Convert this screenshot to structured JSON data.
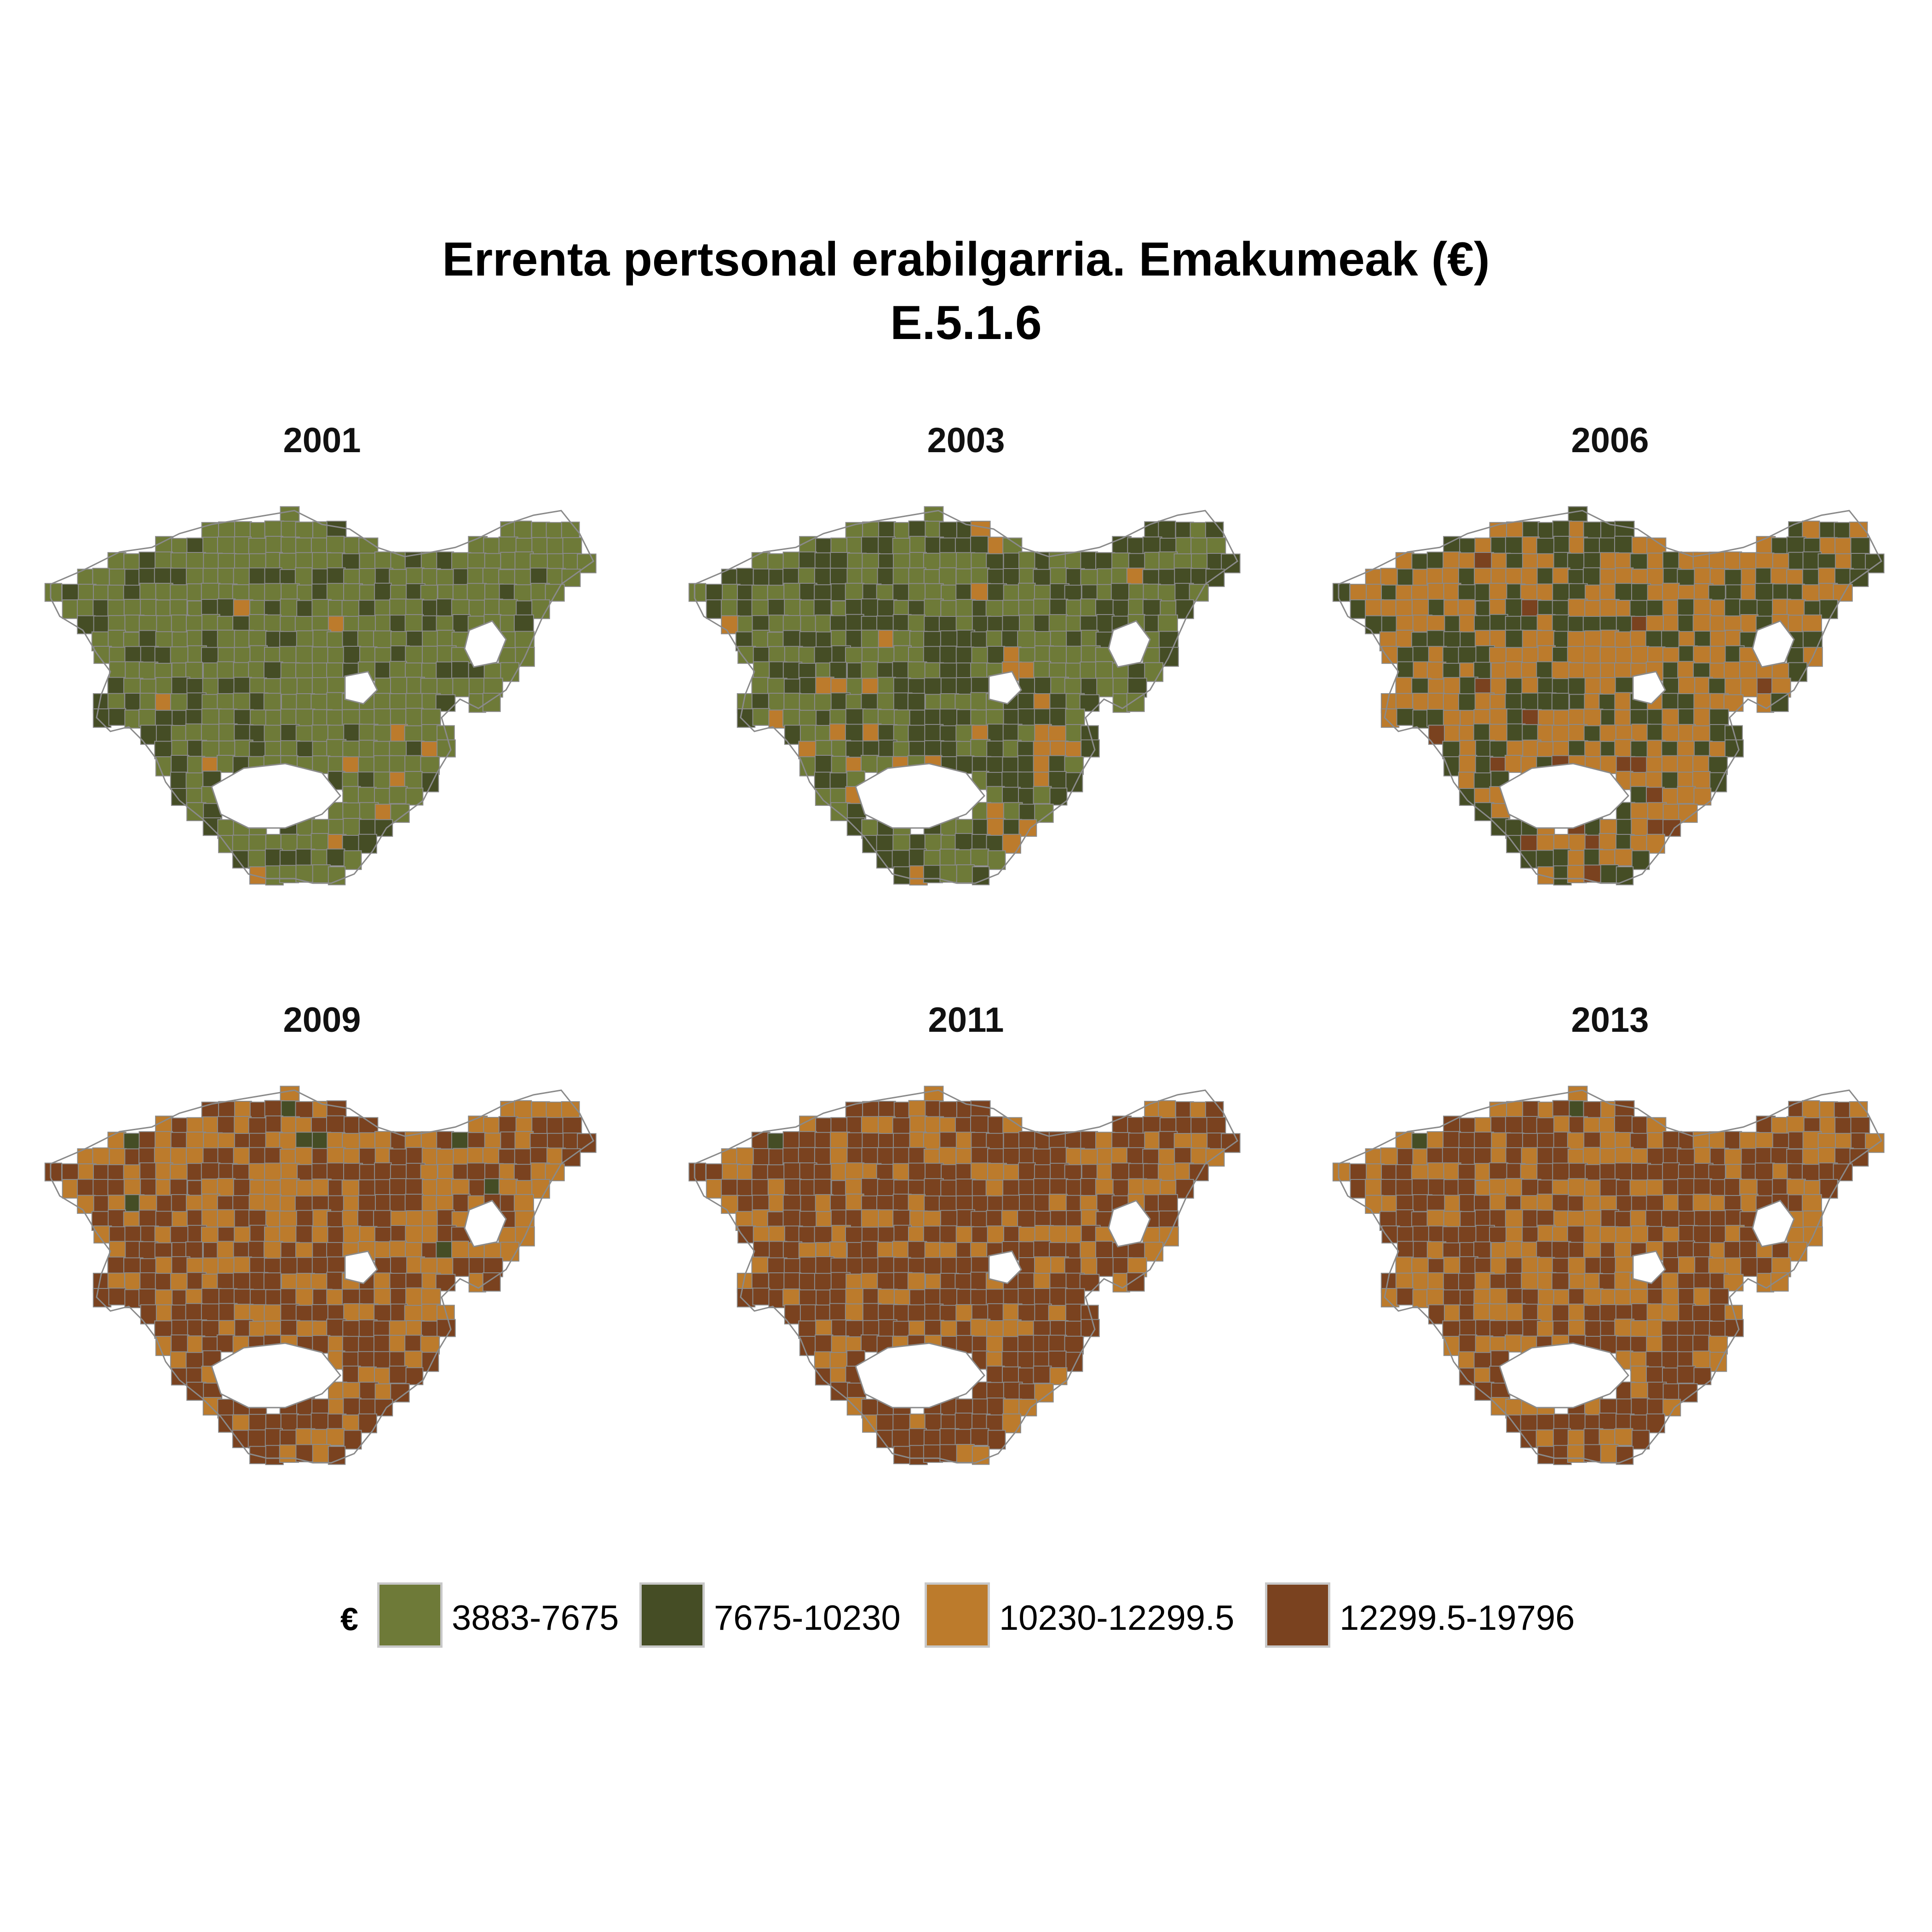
{
  "title": {
    "line1": "Errenta pertsonal erabilgarria. Emakumeak (€)",
    "line2": "E.5.1.6"
  },
  "legend": {
    "title": "€",
    "items": [
      {
        "label": "3883-7675",
        "color": "#6e7a38"
      },
      {
        "label": "7675-10230",
        "color": "#454d25"
      },
      {
        "label": "10230-12299.5",
        "color": "#bc7b2c"
      },
      {
        "label": "12299.5-19796",
        "color": "#7a421f"
      }
    ]
  },
  "colors": {
    "boundary": "#8a8a8a"
  },
  "panels": [
    {
      "year": "2001",
      "mix": [
        0.72,
        0.26,
        0.02,
        0.0
      ]
    },
    {
      "year": "2003",
      "mix": [
        0.52,
        0.36,
        0.12,
        0.0
      ]
    },
    {
      "year": "2006",
      "mix": [
        0.03,
        0.46,
        0.43,
        0.08
      ]
    },
    {
      "year": "2009",
      "mix": [
        0.01,
        0.09,
        0.4,
        0.5
      ]
    },
    {
      "year": "2011",
      "mix": [
        0.0,
        0.06,
        0.34,
        0.6
      ]
    },
    {
      "year": "2013",
      "mix": [
        0.0,
        0.07,
        0.4,
        0.53
      ]
    }
  ]
}
